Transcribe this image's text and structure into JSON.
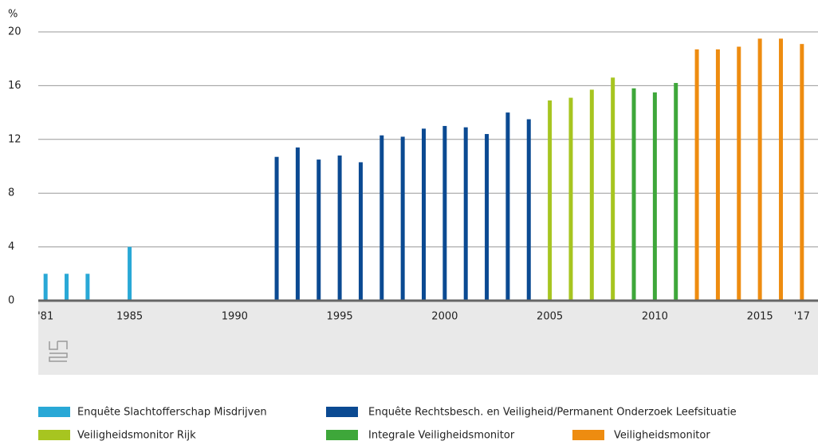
{
  "chart_data": {
    "type": "bar",
    "y_unit": "%",
    "xlim": [
      1980.5,
      2017.5
    ],
    "xticks": [
      {
        "value": 1981,
        "label": "'81"
      },
      1985,
      1990,
      1995,
      2000,
      2005,
      2010,
      2015,
      {
        "value": 2017,
        "label": "'17"
      }
    ],
    "ylim": [
      0,
      20
    ],
    "yticks": [
      0,
      4,
      8,
      12,
      16,
      20
    ],
    "grid": true,
    "series": [
      {
        "name": "Enquête Slachtofferschap Misdrijven",
        "color": "#29a8d6",
        "x": [
          1981,
          1982,
          1983,
          1985
        ],
        "values": [
          2,
          2,
          2,
          4
        ]
      },
      {
        "name": "Enquête Rechtsbesch. en Veiligheid/Permanent Onderzoek Leefsituatie",
        "color": "#0b4a92",
        "x": [
          1992,
          1993,
          1994,
          1995,
          1996,
          1997,
          1998,
          1999,
          2000,
          2001,
          2002,
          2003,
          2004
        ],
        "values": [
          10.7,
          11.4,
          10.5,
          10.8,
          10.3,
          12.3,
          12.2,
          12.8,
          13.0,
          12.9,
          12.4,
          14.0,
          13.5
        ]
      },
      {
        "name": "Veiligheidsmonitor Rijk",
        "color": "#a7c520",
        "x": [
          2005,
          2006,
          2007,
          2008
        ],
        "values": [
          14.9,
          15.1,
          15.7,
          16.6
        ]
      },
      {
        "name": "Integrale Veiligheidsmonitor",
        "color": "#3ea73a",
        "x": [
          2009,
          2010,
          2011
        ],
        "values": [
          15.8,
          15.5,
          16.2
        ]
      },
      {
        "name": "Veiligheidsmonitor",
        "color": "#ee8c10",
        "x": [
          2012,
          2013,
          2014,
          2015,
          2016,
          2017
        ],
        "values": [
          18.7,
          18.7,
          18.9,
          19.5,
          19.5,
          19.1
        ]
      }
    ]
  }
}
